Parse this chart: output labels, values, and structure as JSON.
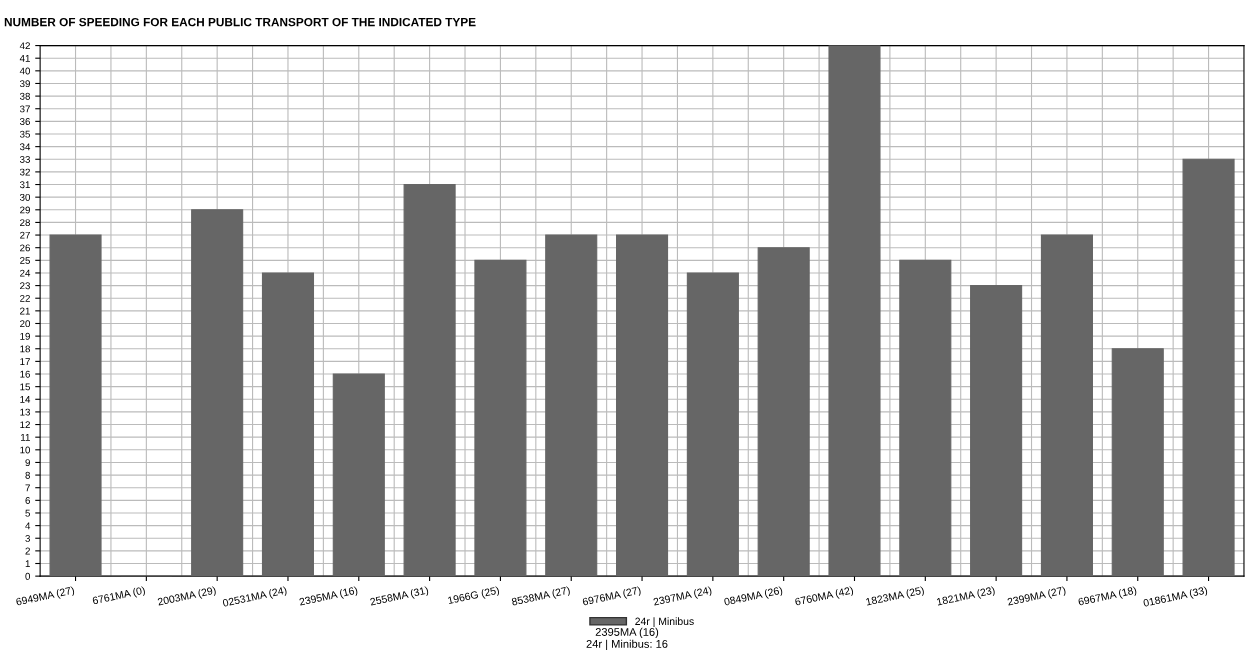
{
  "chart_data": {
    "type": "bar",
    "title": "NUMBER OF SPEEDING FOR EACH PUBLIC TRANSPORT OF THE INDICATED TYPE",
    "categories": [
      "6949MA (27)",
      "6761MA (0)",
      "2003MA (29)",
      "02531MA (24)",
      "2395MA (16)",
      "2558MA (31)",
      "1966G (25)",
      "8538MA (27)",
      "6976MA (27)",
      "2397MA (24)",
      "0849MA (26)",
      "6760MA (42)",
      "1823MA (25)",
      "1821MA (23)",
      "2399MA (27)",
      "6967MA (18)",
      "01861MA (33)"
    ],
    "series": [
      {
        "name": "24r | Minibus",
        "color": "#666666",
        "values": [
          27,
          0,
          29,
          24,
          16,
          31,
          25,
          27,
          27,
          24,
          26,
          42,
          25,
          23,
          27,
          18,
          33
        ]
      }
    ],
    "annotations": [
      "2395MA (16)\n24r | Minibus: 16"
    ],
    "ylim": [
      0,
      42
    ],
    "yticks": [
      0,
      1,
      2,
      3,
      4,
      5,
      6,
      7,
      8,
      9,
      10,
      11,
      12,
      13,
      14,
      15,
      16,
      17,
      18,
      19,
      20,
      21,
      22,
      23,
      24,
      25,
      26,
      27,
      28,
      29,
      30,
      31,
      32,
      33,
      34,
      35,
      36,
      37,
      38,
      39,
      40,
      41,
      42
    ],
    "grid": true,
    "legend": "bottom"
  }
}
